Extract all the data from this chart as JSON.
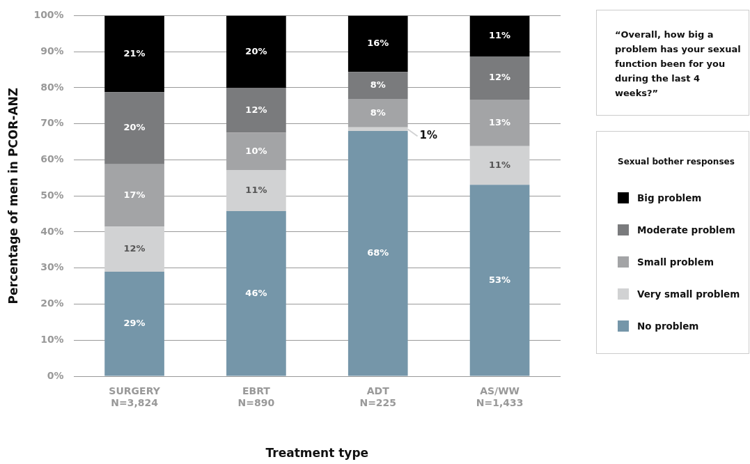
{
  "chart_data": {
    "type": "bar",
    "stacked": true,
    "categories": [
      "SURGERY\nN=3,824",
      "EBRT\nN=890",
      "ADT\nN=225",
      "AS/WW\nN=1,433"
    ],
    "series": [
      {
        "name": "No problem",
        "color": "#7596a9",
        "values": [
          29,
          45.8,
          68,
          53.1
        ],
        "value_labels": [
          "29%",
          "46%",
          "68%",
          "53%"
        ]
      },
      {
        "name": "Very small problem",
        "color": "#d1d2d3",
        "values": [
          12.5,
          11.3,
          1,
          10.7
        ],
        "value_labels": [
          "12%",
          "11%",
          "1%",
          "11%"
        ]
      },
      {
        "name": "Small problem",
        "color": "#a3a4a6",
        "values": [
          17.3,
          10.4,
          7.9,
          12.9
        ],
        "value_labels": [
          "17%",
          "10%",
          "8%",
          "13%"
        ]
      },
      {
        "name": "Moderate problem",
        "color": "#7a7b7d",
        "values": [
          20,
          12.5,
          7.5,
          12
        ],
        "value_labels": [
          "20%",
          "12%",
          "8%",
          "12%"
        ]
      },
      {
        "name": "Big problem",
        "color": "#000000",
        "values": [
          21.2,
          20,
          15.6,
          11.3
        ],
        "value_labels": [
          "21%",
          "20%",
          "16%",
          "11%"
        ]
      }
    ],
    "ylim": [
      0,
      100
    ],
    "yticks": [
      {
        "value": 0,
        "label": "0%"
      },
      {
        "value": 10,
        "label": "10%"
      },
      {
        "value": 20,
        "label": "20%"
      },
      {
        "value": 30,
        "label": "30%"
      },
      {
        "value": 40,
        "label": "40%"
      },
      {
        "value": 50,
        "label": "50%"
      },
      {
        "value": 60,
        "label": "60%"
      },
      {
        "value": 70,
        "label": "70%"
      },
      {
        "value": 80,
        "label": "80%"
      },
      {
        "value": 90,
        "label": "90%"
      },
      {
        "value": 100,
        "label": "100%"
      }
    ],
    "ylabel": "Percentage of men in PCOR-ANZ",
    "xlabel": "Treatment type",
    "legend_title": "Sexual bother responses",
    "legend": "right",
    "grid": "y",
    "annotations": [
      "“Overall, how big a problem has your sexual function been for you during the last 4 weeks?”"
    ]
  }
}
